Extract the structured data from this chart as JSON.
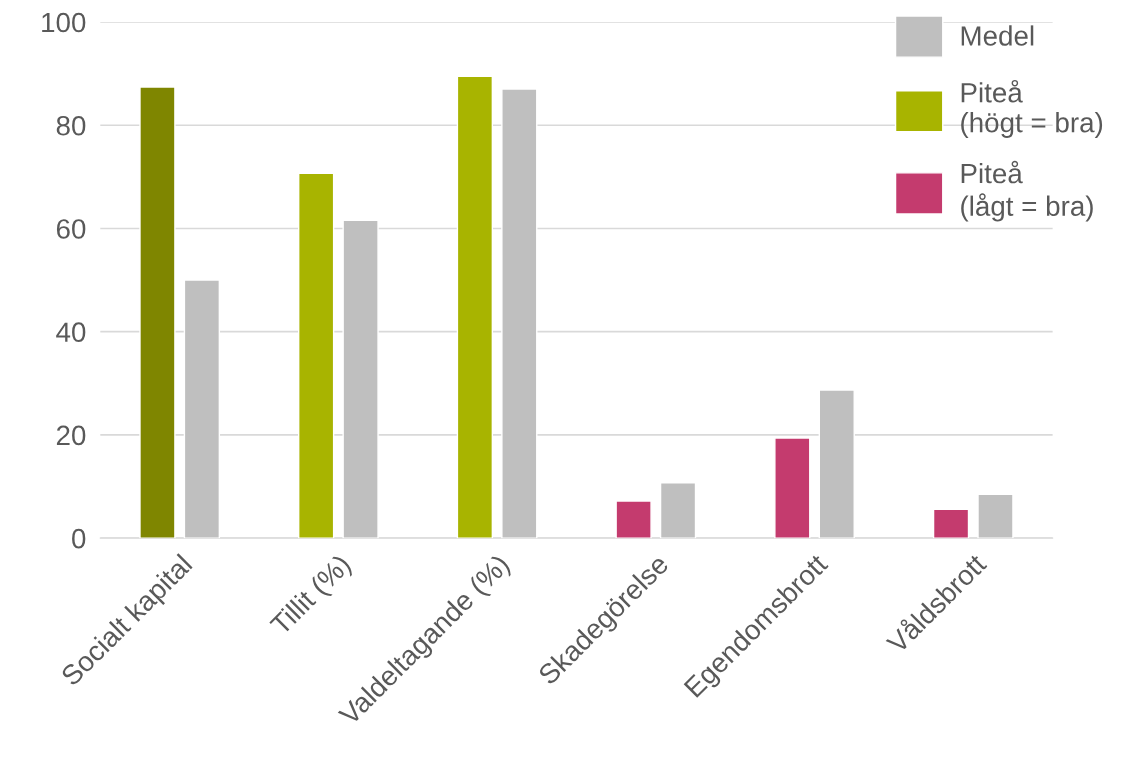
{
  "chart_data": {
    "type": "bar",
    "categories": [
      "Socialt kapital",
      "Tillit (%)",
      "Valdeltagande (%)",
      "Skadegörelse",
      "Egendomsbrott",
      "Våldsbrott"
    ],
    "series": [
      {
        "name": "Piteå\n(högt = bra)",
        "color": "#a8b400",
        "colors": [
          "#7f8600",
          "#a8b400",
          "#a8b400",
          null,
          null,
          null
        ],
        "values": [
          87.4,
          70.7,
          89.5,
          null,
          null,
          null
        ]
      },
      {
        "name": "Piteå\n(lågt = bra)",
        "color": "#c43b6e",
        "values": [
          null,
          null,
          null,
          7.2,
          19.4,
          5.6
        ]
      },
      {
        "name": "Medel",
        "color": "#bfbfbf",
        "values": [
          50,
          61.6,
          87,
          10.7,
          28.7,
          8.5
        ]
      }
    ],
    "ylim": [
      0,
      100
    ],
    "yticks": [
      0,
      20,
      40,
      60,
      80,
      100
    ],
    "grid": "y",
    "legend": "top right"
  }
}
